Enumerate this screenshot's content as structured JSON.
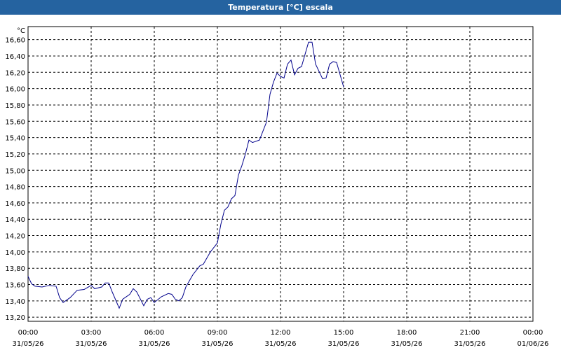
{
  "chart_data": {
    "type": "line",
    "title": "Temperatura [°C] escala",
    "y_unit": "°C",
    "x": [
      "31/05/26 00:00",
      "31/05/26 00:10",
      "31/05/26 00:20",
      "31/05/26 00:40",
      "31/05/26 01:00",
      "31/05/26 01:20",
      "31/05/26 01:30",
      "31/05/26 01:40",
      "31/05/26 02:00",
      "31/05/26 02:20",
      "31/05/26 02:40",
      "31/05/26 03:00",
      "31/05/26 03:10",
      "31/05/26 03:30",
      "31/05/26 03:40",
      "31/05/26 03:50",
      "31/05/26 04:00",
      "31/05/26 04:20",
      "31/05/26 04:30",
      "31/05/26 04:50",
      "31/05/26 05:00",
      "31/05/26 05:10",
      "31/05/26 05:30",
      "31/05/26 05:40",
      "31/05/26 05:50",
      "31/05/26 06:00",
      "31/05/26 06:20",
      "31/05/26 06:40",
      "31/05/26 06:50",
      "31/05/26 07:00",
      "31/05/26 07:10",
      "31/05/26 07:20",
      "31/05/26 07:30",
      "31/05/26 07:50",
      "31/05/26 08:10",
      "31/05/26 08:20",
      "31/05/26 08:40",
      "31/05/26 09:00",
      "31/05/26 09:10",
      "31/05/26 09:20",
      "31/05/26 09:30",
      "31/05/26 09:40",
      "31/05/26 09:50",
      "31/05/26 10:00",
      "31/05/26 10:10",
      "31/05/26 10:20",
      "31/05/26 10:30",
      "31/05/26 10:40",
      "31/05/26 11:00",
      "31/05/26 11:20",
      "31/05/26 11:30",
      "31/05/26 11:40",
      "31/05/26 11:50",
      "31/05/26 12:00",
      "31/05/26 12:10",
      "31/05/26 12:20",
      "31/05/26 12:30",
      "31/05/26 12:40",
      "31/05/26 12:50",
      "31/05/26 13:00",
      "31/05/26 13:20",
      "31/05/26 13:30",
      "31/05/26 13:40",
      "31/05/26 14:00",
      "31/05/26 14:10",
      "31/05/26 14:20",
      "31/05/26 14:30",
      "31/05/26 14:40",
      "31/05/26 15:00"
    ],
    "series": [
      {
        "color": "#00008b",
        "values": [
          13.7,
          13.61,
          13.58,
          13.57,
          13.59,
          13.58,
          13.44,
          13.38,
          13.44,
          13.53,
          13.54,
          13.59,
          13.55,
          13.57,
          13.62,
          13.62,
          13.51,
          13.31,
          13.42,
          13.48,
          13.55,
          13.51,
          13.34,
          13.42,
          13.44,
          13.38,
          13.45,
          13.49,
          13.48,
          13.42,
          13.4,
          13.44,
          13.57,
          13.72,
          13.83,
          13.85,
          14.0,
          14.11,
          14.34,
          14.51,
          14.55,
          14.65,
          14.69,
          14.94,
          15.06,
          15.2,
          15.37,
          15.34,
          15.37,
          15.59,
          15.93,
          16.08,
          16.19,
          16.15,
          16.13,
          16.3,
          16.35,
          16.17,
          16.25,
          16.27,
          16.57,
          16.57,
          16.3,
          16.12,
          16.13,
          16.3,
          16.33,
          16.32,
          16.02
        ]
      }
    ],
    "xlim": [
      "31/05/26 00:00",
      "01/06/26 00:00"
    ],
    "xticks": [
      {
        "value": "31/05/26 00:00",
        "label": [
          "00:00",
          "31/05/26"
        ]
      },
      {
        "value": "31/05/26 03:00",
        "label": [
          "03:00",
          "31/05/26"
        ]
      },
      {
        "value": "31/05/26 06:00",
        "label": [
          "06:00",
          "31/05/26"
        ]
      },
      {
        "value": "31/05/26 09:00",
        "label": [
          "09:00",
          "31/05/26"
        ]
      },
      {
        "value": "31/05/26 12:00",
        "label": [
          "12:00",
          "31/05/26"
        ]
      },
      {
        "value": "31/05/26 15:00",
        "label": [
          "15:00",
          "31/05/26"
        ]
      },
      {
        "value": "31/05/26 18:00",
        "label": [
          "18:00",
          "31/05/26"
        ]
      },
      {
        "value": "31/05/26 21:00",
        "label": [
          "21:00",
          "31/05/26"
        ]
      },
      {
        "value": "01/06/26 00:00",
        "label": [
          "00:00",
          "01/06/26"
        ]
      }
    ],
    "ylim": [
      13.15,
      16.76
    ],
    "yticks": [
      {
        "value": 13.2,
        "label": "13,20"
      },
      {
        "value": 13.4,
        "label": "13,40"
      },
      {
        "value": 13.6,
        "label": "13,60"
      },
      {
        "value": 13.8,
        "label": "13,80"
      },
      {
        "value": 14.0,
        "label": "14,00"
      },
      {
        "value": 14.2,
        "label": "14,20"
      },
      {
        "value": 14.4,
        "label": "14,40"
      },
      {
        "value": 14.6,
        "label": "14,60"
      },
      {
        "value": 14.8,
        "label": "14,80"
      },
      {
        "value": 15.0,
        "label": "15,00"
      },
      {
        "value": 15.2,
        "label": "15,20"
      },
      {
        "value": 15.4,
        "label": "15,40"
      },
      {
        "value": 15.6,
        "label": "15,60"
      },
      {
        "value": 15.8,
        "label": "15,80"
      },
      {
        "value": 16.0,
        "label": "16,00"
      },
      {
        "value": 16.2,
        "label": "16,20"
      },
      {
        "value": 16.4,
        "label": "16,40"
      },
      {
        "value": 16.6,
        "label": "16,60"
      }
    ],
    "grid": true
  }
}
